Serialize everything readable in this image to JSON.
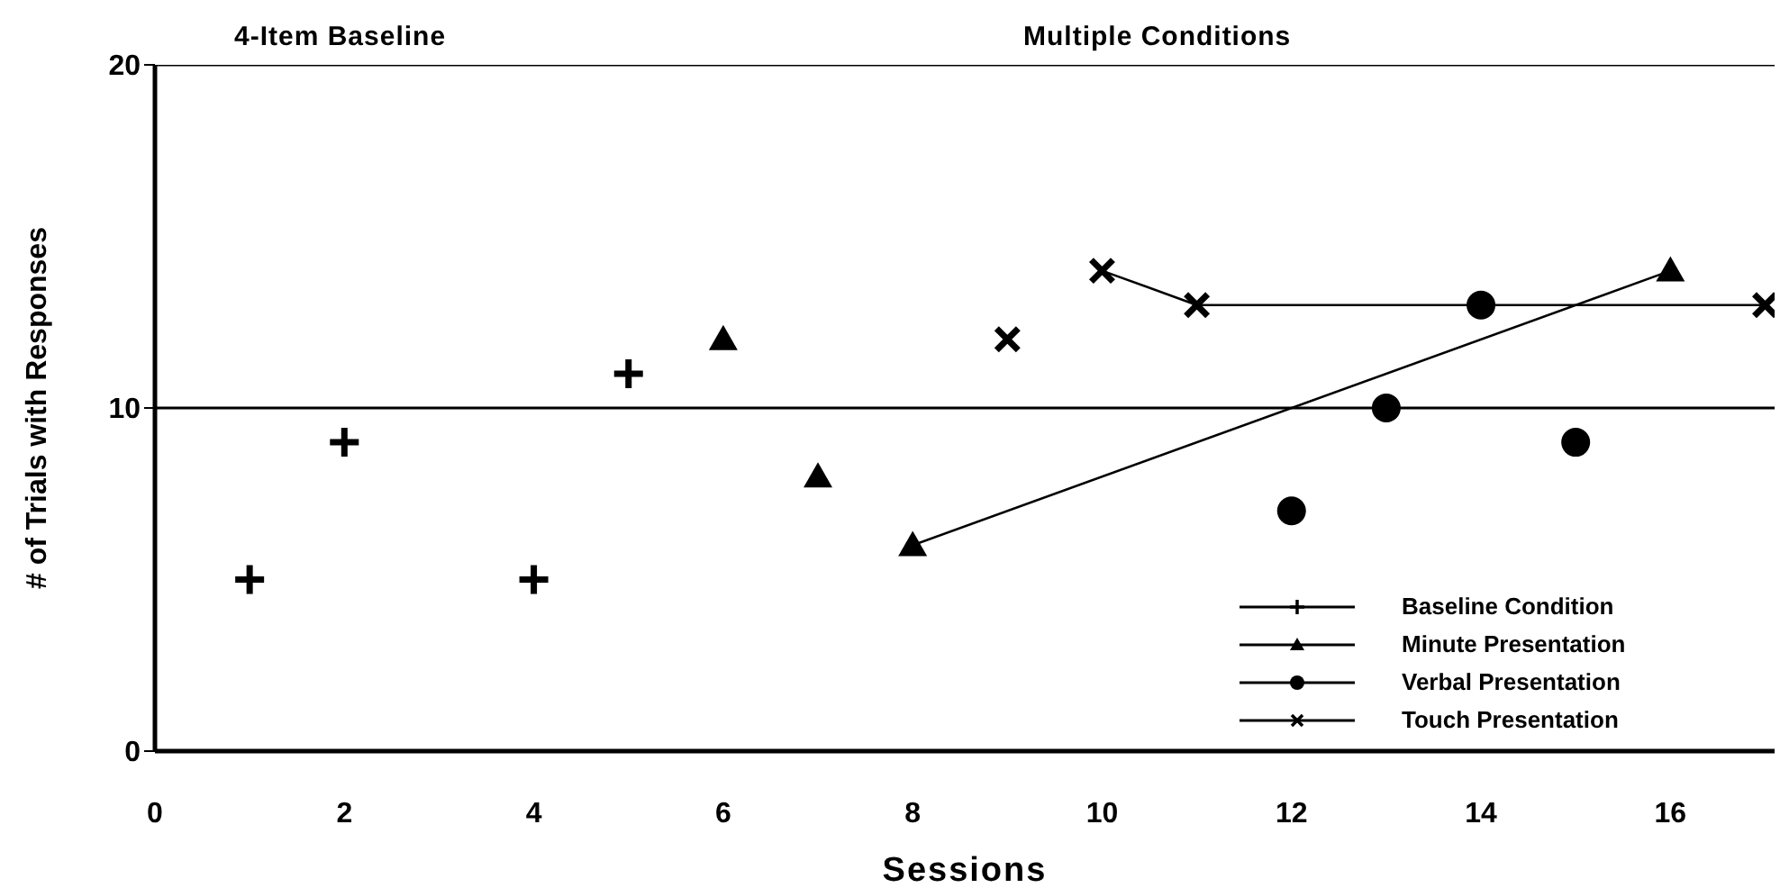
{
  "chart_data": {
    "type": "scatter",
    "xlabel": "Sessions",
    "ylabel": "# of Trials with Responses",
    "annotations": [
      "4-Item Baseline",
      "Multiple Conditions"
    ],
    "xlim": [
      0,
      17.1
    ],
    "xticks": [
      0,
      2,
      4,
      6,
      8,
      10,
      12,
      14,
      16
    ],
    "ylim": [
      0,
      20
    ],
    "yticks": [
      0,
      10,
      20
    ],
    "grid": "y",
    "legend": "bottom right",
    "series": [
      {
        "name": "Baseline Condition",
        "color": "#000000",
        "marker": "plus",
        "x": [
          1,
          2,
          4,
          5
        ],
        "values": [
          5,
          9,
          5,
          11
        ]
      },
      {
        "name": "Minute Presentation",
        "color": "#000000",
        "marker": "triangle",
        "x": [
          6,
          7,
          8,
          16
        ],
        "values": [
          12,
          8,
          6,
          14
        ]
      },
      {
        "name": "Verbal Presentation",
        "color": "#000000",
        "marker": "circle",
        "x": [
          12,
          13,
          14,
          15
        ],
        "values": [
          7,
          10,
          13,
          9
        ]
      },
      {
        "name": "Touch Presentation",
        "color": "#000000",
        "marker": "cross",
        "x": [
          9,
          10,
          11,
          17
        ],
        "values": [
          12,
          14,
          13,
          13
        ]
      },
      {
        "type": "line",
        "color": "#000000",
        "x": [
          8,
          16
        ],
        "values": [
          6,
          14
        ]
      },
      {
        "type": "line",
        "color": "#000000",
        "x": [
          10,
          11,
          17
        ],
        "values": [
          14,
          13,
          13
        ]
      }
    ]
  }
}
